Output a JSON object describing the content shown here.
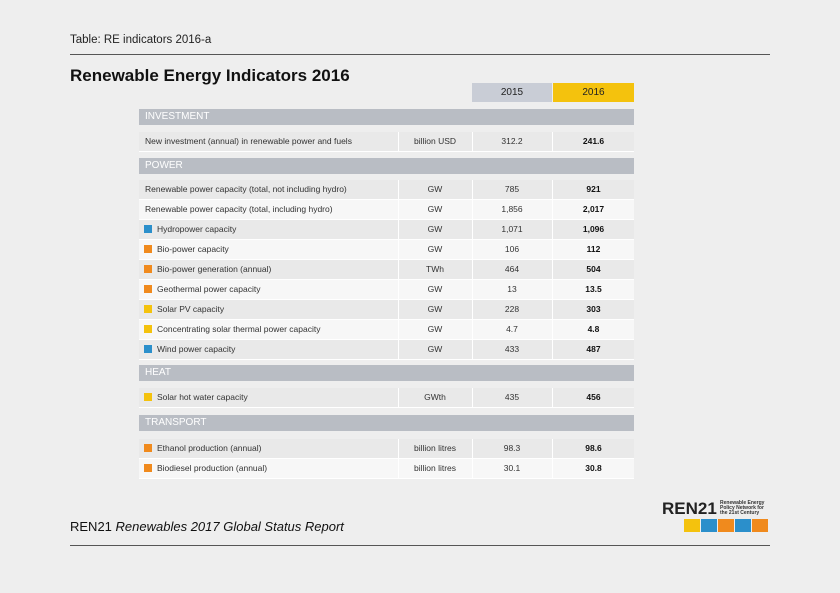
{
  "header": {
    "label": "Table: RE indicators 2016-a",
    "title": "Renewable Energy Indicators 2016"
  },
  "table": {
    "columns": [
      "2015",
      "2016"
    ],
    "sections": [
      {
        "title": "INVESTMENT",
        "rows": [
          {
            "label": "New investment (annual) in renewable power and fuels",
            "unit": "billion USD",
            "values": [
              "312.2",
              "241.6"
            ]
          }
        ]
      },
      {
        "title": "POWER",
        "rows": [
          {
            "label": "Renewable power capacity (total, not including hydro)",
            "unit": "GW",
            "values": [
              "785",
              "921"
            ]
          },
          {
            "label": "Renewable power capacity (total, including hydro)",
            "unit": "GW",
            "values": [
              "1,856",
              "2,017"
            ]
          },
          {
            "label": "Hydropower capacity",
            "unit": "GW",
            "values": [
              "1,071",
              "1,096"
            ]
          },
          {
            "label": "Bio-power capacity",
            "unit": "GW",
            "values": [
              "106",
              "112"
            ]
          },
          {
            "label": "Bio-power generation (annual)",
            "unit": "TWh",
            "values": [
              "464",
              "504"
            ]
          },
          {
            "label": "Geothermal power capacity",
            "unit": "GW",
            "values": [
              "13",
              "13.5"
            ]
          },
          {
            "label": "Solar PV capacity",
            "unit": "GW",
            "values": [
              "228",
              "303"
            ]
          },
          {
            "label": "Concentrating solar thermal power capacity",
            "unit": "GW",
            "values": [
              "4.7",
              "4.8"
            ]
          },
          {
            "label": "Wind power capacity",
            "unit": "GW",
            "values": [
              "433",
              "487"
            ]
          }
        ]
      },
      {
        "title": "HEAT",
        "rows": [
          {
            "label": "Solar hot water capacity",
            "unit": "GWth",
            "values": [
              "435",
              "456"
            ]
          }
        ]
      },
      {
        "title": "TRANSPORT",
        "rows": [
          {
            "label": "Ethanol production (annual)",
            "unit": "billion litres",
            "values": [
              "98.3",
              "98.6"
            ]
          },
          {
            "label": "Biodiesel production (annual)",
            "unit": "billion litres",
            "values": [
              "30.1",
              "30.8"
            ]
          }
        ]
      }
    ]
  },
  "footer": {
    "org": "REN21",
    "report": "Renewables 2017 Global Status Report"
  },
  "logo": {
    "name": "REN21",
    "tagline": "Renewable Energy Policy Network for the 21st Century"
  }
}
